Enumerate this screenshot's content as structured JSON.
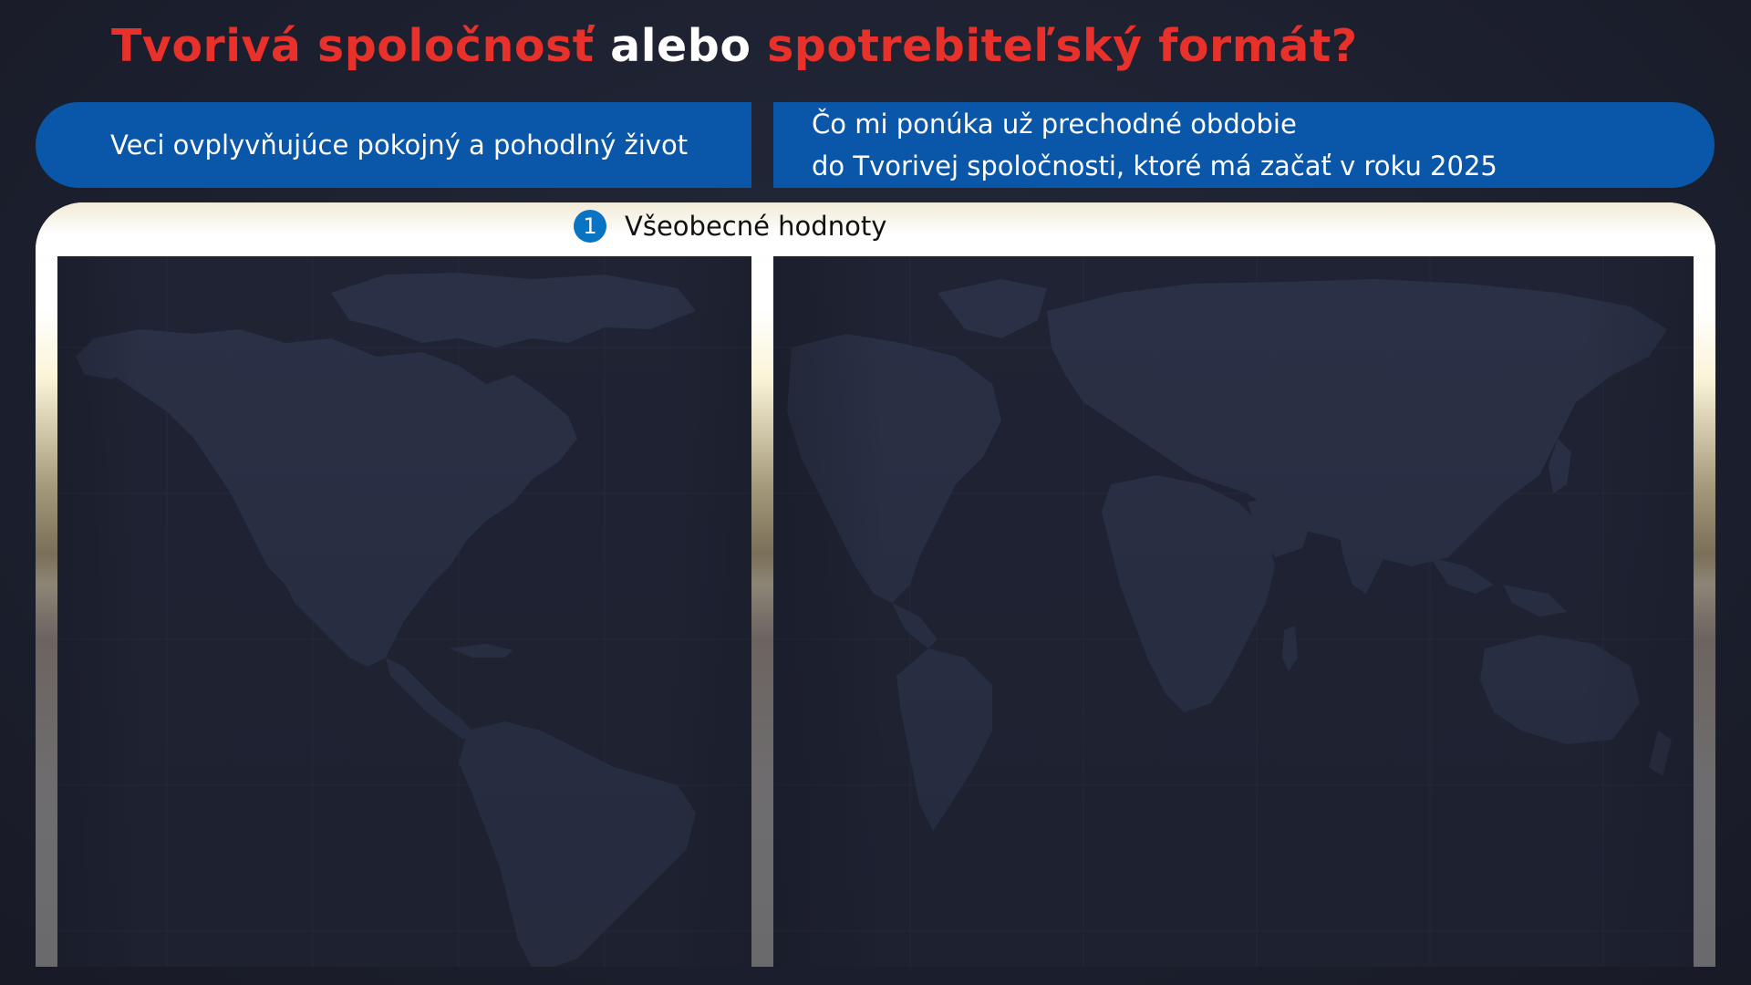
{
  "title": {
    "part1": "Tvorivá spoločnosť",
    "part2": "alebo",
    "part3": "spotrebiteľský formát?"
  },
  "header": {
    "left_label": "Veci ovplyvňujúce pokojný a pohodlný život",
    "right_line1": "Čo mi ponúka už prechodné obdobie",
    "right_line2": "do Tvorivej spoločnosti, ktoré má začať v roku 2025"
  },
  "section": {
    "number": "1",
    "label": "Všeobecné hodnoty"
  },
  "colors": {
    "title_red": "#e8312a",
    "title_white": "#ffffff",
    "header_blue": "#0a56a8",
    "badge_blue": "#0a74c4",
    "panel_bg": "#1f2333",
    "map_land": "#2a3146"
  },
  "left_panel": {
    "content": ""
  },
  "right_panel": {
    "content": ""
  }
}
